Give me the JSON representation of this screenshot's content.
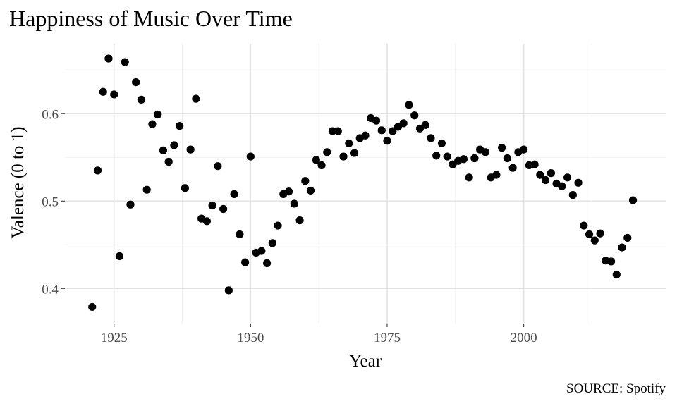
{
  "chart_data": {
    "type": "scatter",
    "title": "Happiness of Music Over Time",
    "xlabel": "Year",
    "ylabel": "Valence (0 to 1)",
    "caption": "SOURCE: Spotify",
    "xlim": [
      1916,
      2026
    ],
    "ylim": [
      0.36,
      0.68
    ],
    "x_ticks": [
      1925,
      1950,
      1975,
      2000
    ],
    "y_ticks": [
      0.4,
      0.5,
      0.6
    ],
    "y_tick_labels": [
      "0.4",
      "0.5",
      "0.6"
    ],
    "grid": true,
    "point_color": "#000000",
    "x": [
      1921,
      1922,
      1923,
      1924,
      1925,
      1926,
      1927,
      1928,
      1929,
      1930,
      1931,
      1932,
      1933,
      1934,
      1935,
      1936,
      1937,
      1938,
      1939,
      1940,
      1941,
      1942,
      1943,
      1944,
      1945,
      1946,
      1947,
      1948,
      1949,
      1950,
      1951,
      1952,
      1953,
      1954,
      1955,
      1956,
      1957,
      1958,
      1959,
      1960,
      1961,
      1962,
      1963,
      1964,
      1965,
      1966,
      1967,
      1968,
      1969,
      1970,
      1971,
      1972,
      1973,
      1974,
      1975,
      1976,
      1977,
      1978,
      1979,
      1980,
      1981,
      1982,
      1983,
      1984,
      1985,
      1986,
      1987,
      1988,
      1989,
      1990,
      1991,
      1992,
      1993,
      1994,
      1995,
      1996,
      1997,
      1998,
      1999,
      2000,
      2001,
      2002,
      2003,
      2004,
      2005,
      2006,
      2007,
      2008,
      2009,
      2010,
      2011,
      2012,
      2013,
      2014,
      2015,
      2016,
      2017,
      2018,
      2019,
      2020
    ],
    "y": [
      0.379,
      0.535,
      0.625,
      0.663,
      0.622,
      0.437,
      0.659,
      0.496,
      0.636,
      0.616,
      0.513,
      0.588,
      0.599,
      0.558,
      0.545,
      0.564,
      0.586,
      0.515,
      0.559,
      0.617,
      0.48,
      0.477,
      0.495,
      0.54,
      0.491,
      0.398,
      0.508,
      0.462,
      0.43,
      0.551,
      0.441,
      0.443,
      0.429,
      0.452,
      0.472,
      0.508,
      0.511,
      0.497,
      0.478,
      0.523,
      0.512,
      0.547,
      0.541,
      0.556,
      0.58,
      0.58,
      0.551,
      0.566,
      0.555,
      0.572,
      0.575,
      0.595,
      0.592,
      0.581,
      0.569,
      0.58,
      0.585,
      0.589,
      0.61,
      0.598,
      0.583,
      0.587,
      0.572,
      0.552,
      0.566,
      0.551,
      0.542,
      0.546,
      0.548,
      0.527,
      0.549,
      0.559,
      0.556,
      0.527,
      0.53,
      0.561,
      0.549,
      0.538,
      0.556,
      0.559,
      0.541,
      0.542,
      0.53,
      0.524,
      0.532,
      0.52,
      0.517,
      0.527,
      0.507,
      0.521,
      0.472,
      0.462,
      0.455,
      0.463,
      0.432,
      0.431,
      0.416,
      0.447,
      0.458,
      0.501
    ]
  }
}
